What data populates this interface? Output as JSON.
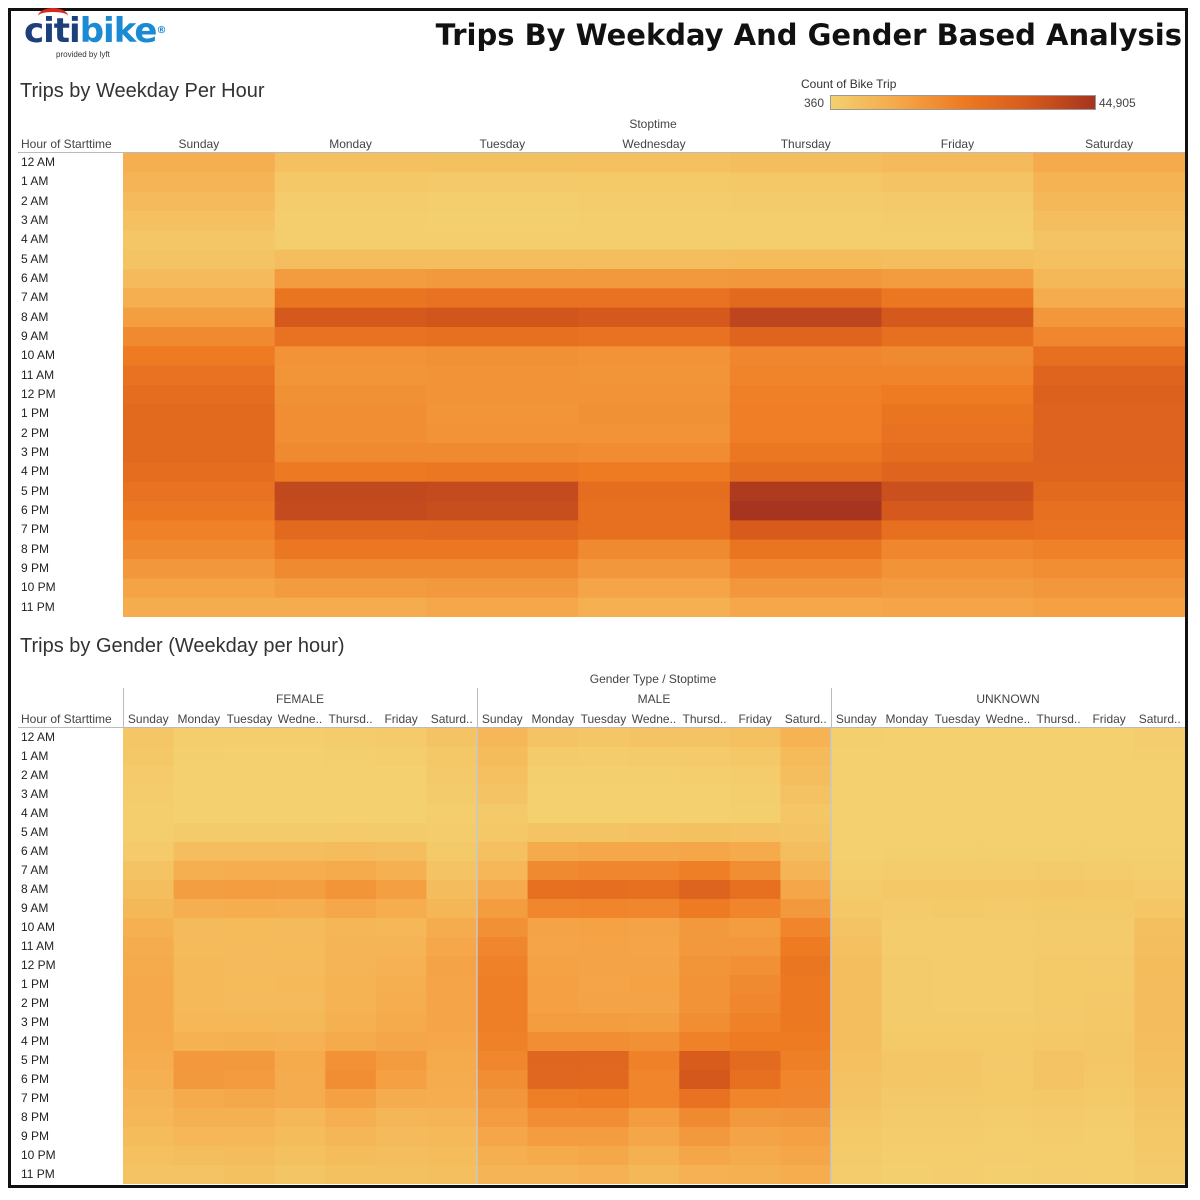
{
  "header": {
    "logo_text_citi": "citi",
    "logo_text_bike": "bike",
    "logo_subtitle": "provided by lyft",
    "title": "Trips By Weekday And Gender Based Analysis"
  },
  "legend": {
    "title": "Count of Bike Trip",
    "min_label": "360",
    "max_label": "44,905",
    "min": 360,
    "max": 44905,
    "colors": [
      "#f4d06f",
      "#f5a84a",
      "#ee7a22",
      "#d65a1c",
      "#a6341f"
    ]
  },
  "chart_data": [
    {
      "type": "heatmap",
      "title": "Trips by Weekday Per Hour",
      "row_header": "Hour of Starttime",
      "col_header": "Stoptime",
      "rows": [
        "12 AM",
        "1 AM",
        "2 AM",
        "3 AM",
        "4 AM",
        "5 AM",
        "6 AM",
        "7 AM",
        "8 AM",
        "9 AM",
        "10 AM",
        "11 AM",
        "12 PM",
        "1 PM",
        "2 PM",
        "3 PM",
        "4 PM",
        "5 PM",
        "6 PM",
        "7 PM",
        "8 PM",
        "9 PM",
        "10 PM",
        "11 PM"
      ],
      "columns": [
        "Sunday",
        "Monday",
        "Tuesday",
        "Wednesday",
        "Thursday",
        "Friday",
        "Saturday"
      ],
      "values": [
        [
          6000,
          2500,
          2200,
          2500,
          2800,
          3500,
          7000
        ],
        [
          4500,
          1200,
          1000,
          1100,
          1300,
          1800,
          5000
        ],
        [
          3500,
          700,
          600,
          700,
          800,
          1000,
          4000
        ],
        [
          2500,
          500,
          400,
          500,
          500,
          700,
          3000
        ],
        [
          1500,
          500,
          500,
          500,
          500,
          600,
          2000
        ],
        [
          1800,
          2800,
          2900,
          3000,
          3200,
          3000,
          2500
        ],
        [
          3500,
          10000,
          10500,
          10500,
          11000,
          10000,
          4000
        ],
        [
          6000,
          20000,
          21000,
          21000,
          24000,
          19000,
          6500
        ],
        [
          9500,
          31000,
          32000,
          31000,
          38000,
          31000,
          11000
        ],
        [
          14000,
          21000,
          22000,
          21000,
          26000,
          22000,
          15000
        ],
        [
          18000,
          12000,
          12500,
          12000,
          15000,
          14000,
          22000
        ],
        [
          21000,
          11500,
          12000,
          11500,
          15500,
          15500,
          26000
        ],
        [
          23000,
          12500,
          12000,
          12000,
          16500,
          18000,
          28000
        ],
        [
          24000,
          13000,
          11500,
          12500,
          17000,
          20000,
          27000
        ],
        [
          24000,
          13000,
          12000,
          12000,
          17000,
          21000,
          27000
        ],
        [
          24000,
          14000,
          14000,
          13500,
          19000,
          23000,
          27000
        ],
        [
          23000,
          18500,
          19000,
          18000,
          23000,
          26000,
          26000
        ],
        [
          21000,
          37000,
          36000,
          23000,
          42000,
          34000,
          24000
        ],
        [
          19000,
          36000,
          35000,
          22000,
          44905,
          31000,
          22000
        ],
        [
          16000,
          24000,
          25000,
          22000,
          30000,
          22000,
          21000
        ],
        [
          14000,
          19000,
          19000,
          14000,
          20000,
          15000,
          16000
        ],
        [
          11000,
          14000,
          14000,
          11000,
          15000,
          12000,
          13000
        ],
        [
          8500,
          10000,
          10500,
          8000,
          11000,
          10000,
          11000
        ],
        [
          6500,
          6500,
          7500,
          5500,
          7500,
          8000,
          9000
        ]
      ]
    },
    {
      "type": "heatmap",
      "title": "Trips by Gender (Weekday per hour)",
      "row_header": "Hour of Starttime",
      "col_header": "Gender Type / Stoptime",
      "groups": [
        "FEMALE",
        "MALE",
        "UNKNOWN"
      ],
      "columns": [
        "Sunday",
        "Monday",
        "Tuesday",
        "Wedne..",
        "Thursd..",
        "Friday",
        "Saturd.."
      ],
      "rows": [
        "12 AM",
        "1 AM",
        "2 AM",
        "3 AM",
        "4 AM",
        "5 AM",
        "6 AM",
        "7 AM",
        "8 AM",
        "9 AM",
        "10 AM",
        "11 AM",
        "12 PM",
        "1 PM",
        "2 PM",
        "3 PM",
        "4 PM",
        "5 PM",
        "6 PM",
        "7 PM",
        "8 PM",
        "9 PM",
        "10 PM",
        "11 PM"
      ],
      "values": {
        "FEMALE": [
          [
            1500,
            600,
            600,
            600,
            700,
            900,
            1800
          ],
          [
            1200,
            400,
            300,
            300,
            400,
            500,
            1300
          ],
          [
            900,
            300,
            300,
            300,
            300,
            300,
            1000
          ],
          [
            700,
            300,
            300,
            300,
            300,
            300,
            800
          ],
          [
            500,
            300,
            300,
            300,
            300,
            300,
            600
          ],
          [
            500,
            800,
            800,
            800,
            900,
            800,
            700
          ],
          [
            900,
            2800,
            2900,
            2900,
            3100,
            2800,
            1100
          ],
          [
            1700,
            6000,
            6200,
            6200,
            7000,
            5600,
            1900
          ],
          [
            2800,
            9500,
            9800,
            9500,
            11500,
            9200,
            3100
          ],
          [
            4000,
            6000,
            6300,
            6000,
            7500,
            6300,
            4400
          ],
          [
            5500,
            3500,
            3600,
            3500,
            4300,
            4100,
            6500
          ],
          [
            6400,
            3400,
            3500,
            3400,
            4500,
            4500,
            7600
          ],
          [
            7000,
            3700,
            3500,
            3500,
            4800,
            5300,
            8200
          ],
          [
            7200,
            3800,
            3400,
            3700,
            5000,
            5900,
            7900
          ],
          [
            7200,
            3800,
            3500,
            3500,
            5000,
            6200,
            7900
          ],
          [
            7200,
            4100,
            4100,
            4000,
            5600,
            6800,
            7900
          ],
          [
            6800,
            5400,
            5600,
            5300,
            6800,
            7700,
            7600
          ],
          [
            6200,
            10800,
            10500,
            6800,
            12300,
            10000,
            7000
          ],
          [
            5600,
            10500,
            10200,
            6500,
            13200,
            9100,
            6500
          ],
          [
            4700,
            7000,
            7300,
            6500,
            8800,
            6500,
            6200
          ],
          [
            4100,
            5600,
            5600,
            4100,
            5900,
            4400,
            4700
          ],
          [
            3200,
            4100,
            4100,
            3200,
            4400,
            3500,
            3800
          ],
          [
            2500,
            2900,
            3100,
            2300,
            3200,
            2900,
            3200
          ],
          [
            1900,
            1900,
            2200,
            1600,
            2200,
            2300,
            2600
          ]
        ],
        "MALE": [
          [
            4200,
            1800,
            1500,
            1800,
            2000,
            2500,
            5000
          ],
          [
            3200,
            800,
            700,
            800,
            900,
            1200,
            3600
          ],
          [
            2500,
            400,
            400,
            400,
            500,
            700,
            2900
          ],
          [
            1800,
            360,
            360,
            360,
            360,
            500,
            2100
          ],
          [
            1000,
            360,
            360,
            360,
            360,
            400,
            1400
          ],
          [
            1200,
            2000,
            2000,
            2100,
            2200,
            2100,
            1700
          ],
          [
            2500,
            7000,
            7400,
            7400,
            7700,
            7000,
            2800
          ],
          [
            4200,
            14000,
            14700,
            14700,
            16800,
            13300,
            4500
          ],
          [
            6600,
            21700,
            22400,
            21700,
            26600,
            21700,
            7700
          ],
          [
            9800,
            14700,
            15400,
            14700,
            18200,
            15400,
            10500
          ],
          [
            12600,
            8400,
            8700,
            8400,
            10500,
            9800,
            15400
          ],
          [
            14700,
            8000,
            8400,
            8000,
            10800,
            10800,
            18200
          ],
          [
            16100,
            8700,
            8400,
            8400,
            11500,
            12600,
            19600
          ],
          [
            16800,
            9100,
            8000,
            8700,
            11900,
            14000,
            18900
          ],
          [
            16800,
            9100,
            8400,
            8400,
            11900,
            14700,
            18900
          ],
          [
            16800,
            9800,
            9800,
            9500,
            13300,
            16100,
            18900
          ],
          [
            16100,
            13000,
            13300,
            12600,
            16100,
            18200,
            18200
          ],
          [
            14700,
            25900,
            25200,
            16100,
            29400,
            23800,
            16800
          ],
          [
            13300,
            25200,
            24500,
            15400,
            31400,
            21700,
            15400
          ],
          [
            11200,
            16800,
            17500,
            15400,
            21000,
            15400,
            14700
          ],
          [
            9800,
            13300,
            13300,
            9800,
            14000,
            10500,
            11200
          ],
          [
            7700,
            9800,
            9800,
            7700,
            10500,
            8400,
            9100
          ],
          [
            6000,
            7000,
            7400,
            5600,
            7700,
            7000,
            7700
          ],
          [
            4500,
            4500,
            5300,
            3900,
            5300,
            5600,
            6300
          ]
        ],
        "UNKNOWN": [
          [
            400,
            360,
            360,
            360,
            360,
            360,
            450
          ],
          [
            380,
            360,
            360,
            360,
            360,
            360,
            400
          ],
          [
            370,
            360,
            360,
            360,
            360,
            360,
            380
          ],
          [
            360,
            360,
            360,
            360,
            360,
            360,
            370
          ],
          [
            360,
            360,
            360,
            360,
            360,
            360,
            360
          ],
          [
            360,
            360,
            360,
            360,
            360,
            360,
            360
          ],
          [
            380,
            400,
            400,
            400,
            410,
            400,
            390
          ],
          [
            500,
            700,
            720,
            720,
            800,
            700,
            520
          ],
          [
            800,
            1200,
            1250,
            1200,
            1400,
            1200,
            900
          ],
          [
            1200,
            900,
            950,
            900,
            1100,
            950,
            1400
          ],
          [
            2000,
            700,
            720,
            700,
            850,
            800,
            2600
          ],
          [
            2500,
            700,
            720,
            700,
            900,
            900,
            3000
          ],
          [
            2800,
            750,
            720,
            720,
            950,
            1000,
            3200
          ],
          [
            2900,
            760,
            700,
            740,
            980,
            1100,
            3100
          ],
          [
            2900,
            760,
            720,
            720,
            980,
            1150,
            3100
          ],
          [
            2900,
            800,
            800,
            780,
            1050,
            1250,
            3100
          ],
          [
            2700,
            950,
            980,
            930,
            1200,
            1350,
            2900
          ],
          [
            2400,
            1500,
            1450,
            1000,
            1700,
            1450,
            2600
          ],
          [
            2100,
            1400,
            1350,
            950,
            1750,
            1300,
            2300
          ],
          [
            1700,
            1000,
            1050,
            950,
            1250,
            950,
            2000
          ],
          [
            1400,
            850,
            850,
            650,
            900,
            700,
            1600
          ],
          [
            1100,
            650,
            650,
            550,
            700,
            600,
            1300
          ],
          [
            850,
            500,
            520,
            450,
            550,
            500,
            1050
          ],
          [
            650,
            420,
            450,
            400,
            450,
            460,
            850
          ]
        ]
      }
    }
  ]
}
